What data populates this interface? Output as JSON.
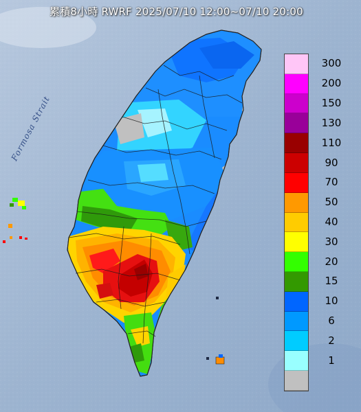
{
  "title": "累積8小時 RWRF 2025/07/10 12:00~07/10 20:00",
  "strait_label": "Formosa Strait",
  "legend": {
    "items": [
      {
        "label": "300",
        "color": "#ffc6f7"
      },
      {
        "label": "200",
        "color": "#ff00ff"
      },
      {
        "label": "150",
        "color": "#cc00cc"
      },
      {
        "label": "130",
        "color": "#990099"
      },
      {
        "label": "110",
        "color": "#990000"
      },
      {
        "label": "90",
        "color": "#cc0000"
      },
      {
        "label": "70",
        "color": "#ff0000"
      },
      {
        "label": "50",
        "color": "#ff9900"
      },
      {
        "label": "40",
        "color": "#ffcc00"
      },
      {
        "label": "30",
        "color": "#ffff00"
      },
      {
        "label": "20",
        "color": "#33ff00"
      },
      {
        "label": "15",
        "color": "#339900"
      },
      {
        "label": "10",
        "color": "#0066ff"
      },
      {
        "label": "6",
        "color": "#0099ff"
      },
      {
        "label": "2",
        "color": "#00ccff"
      },
      {
        "label": "1",
        "color": "#99ffff"
      },
      {
        "label": "",
        "color": "#c0c0c0"
      }
    ]
  },
  "colors": {
    "sea": "#9fb6d2",
    "land_base": "#a9bfd6"
  }
}
